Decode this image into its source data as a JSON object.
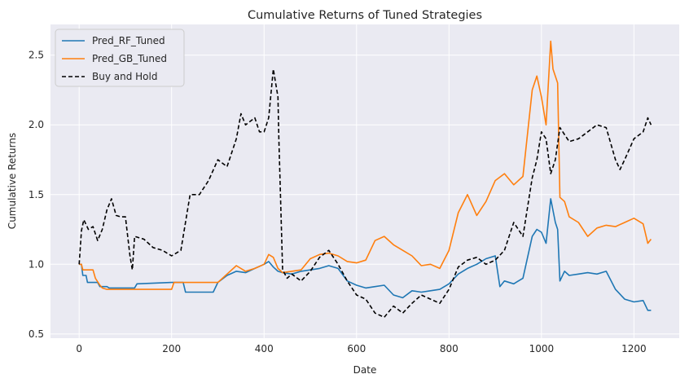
{
  "chart_data": {
    "type": "line",
    "title": "Cumulative Returns of Tuned Strategies",
    "xlabel": "Date",
    "ylabel": "Cumulative Returns",
    "xlim": [
      -62,
      1298
    ],
    "ylim": [
      0.47,
      2.72
    ],
    "xticks": [
      0,
      200,
      400,
      600,
      800,
      1000,
      1200
    ],
    "yticks": [
      0.5,
      1.0,
      1.5,
      2.0,
      2.5
    ],
    "grid": true,
    "legend_position": "upper-left",
    "series": [
      {
        "name": "Pred_RF_Tuned",
        "color": "#1f77b4",
        "dash": "solid",
        "points": [
          [
            0,
            1.0
          ],
          [
            5,
            1.0
          ],
          [
            8,
            0.92
          ],
          [
            15,
            0.92
          ],
          [
            18,
            0.87
          ],
          [
            40,
            0.87
          ],
          [
            45,
            0.84
          ],
          [
            60,
            0.84
          ],
          [
            65,
            0.83
          ],
          [
            120,
            0.83
          ],
          [
            125,
            0.86
          ],
          [
            200,
            0.87
          ],
          [
            225,
            0.87
          ],
          [
            230,
            0.8
          ],
          [
            290,
            0.8
          ],
          [
            300,
            0.87
          ],
          [
            320,
            0.92
          ],
          [
            340,
            0.95
          ],
          [
            360,
            0.94
          ],
          [
            380,
            0.97
          ],
          [
            400,
            1.0
          ],
          [
            410,
            1.02
          ],
          [
            420,
            0.98
          ],
          [
            430,
            0.95
          ],
          [
            440,
            0.94
          ],
          [
            460,
            0.93
          ],
          [
            480,
            0.95
          ],
          [
            500,
            0.96
          ],
          [
            520,
            0.97
          ],
          [
            540,
            0.99
          ],
          [
            560,
            0.97
          ],
          [
            580,
            0.88
          ],
          [
            600,
            0.85
          ],
          [
            620,
            0.83
          ],
          [
            640,
            0.84
          ],
          [
            660,
            0.85
          ],
          [
            680,
            0.78
          ],
          [
            700,
            0.76
          ],
          [
            720,
            0.81
          ],
          [
            740,
            0.8
          ],
          [
            760,
            0.81
          ],
          [
            780,
            0.82
          ],
          [
            800,
            0.86
          ],
          [
            820,
            0.93
          ],
          [
            840,
            0.97
          ],
          [
            860,
            1.0
          ],
          [
            880,
            1.04
          ],
          [
            900,
            1.06
          ],
          [
            910,
            0.84
          ],
          [
            920,
            0.88
          ],
          [
            940,
            0.86
          ],
          [
            960,
            0.9
          ],
          [
            980,
            1.2
          ],
          [
            990,
            1.25
          ],
          [
            1000,
            1.23
          ],
          [
            1010,
            1.15
          ],
          [
            1020,
            1.47
          ],
          [
            1030,
            1.3
          ],
          [
            1035,
            1.25
          ],
          [
            1040,
            0.88
          ],
          [
            1050,
            0.95
          ],
          [
            1060,
            0.92
          ],
          [
            1080,
            0.93
          ],
          [
            1100,
            0.94
          ],
          [
            1120,
            0.93
          ],
          [
            1140,
            0.95
          ],
          [
            1160,
            0.82
          ],
          [
            1180,
            0.75
          ],
          [
            1200,
            0.73
          ],
          [
            1220,
            0.74
          ],
          [
            1230,
            0.67
          ],
          [
            1237,
            0.67
          ]
        ]
      },
      {
        "name": "Pred_GB_Tuned",
        "color": "#ff7f0e",
        "dash": "solid",
        "points": [
          [
            0,
            1.0
          ],
          [
            5,
            1.0
          ],
          [
            8,
            0.96
          ],
          [
            30,
            0.96
          ],
          [
            35,
            0.9
          ],
          [
            45,
            0.85
          ],
          [
            50,
            0.83
          ],
          [
            60,
            0.82
          ],
          [
            200,
            0.82
          ],
          [
            205,
            0.87
          ],
          [
            290,
            0.87
          ],
          [
            300,
            0.87
          ],
          [
            320,
            0.93
          ],
          [
            340,
            0.99
          ],
          [
            360,
            0.95
          ],
          [
            380,
            0.97
          ],
          [
            400,
            1.0
          ],
          [
            410,
            1.07
          ],
          [
            420,
            1.05
          ],
          [
            430,
            0.97
          ],
          [
            440,
            0.94
          ],
          [
            460,
            0.95
          ],
          [
            480,
            0.96
          ],
          [
            500,
            1.04
          ],
          [
            520,
            1.07
          ],
          [
            540,
            1.08
          ],
          [
            560,
            1.06
          ],
          [
            580,
            1.02
          ],
          [
            600,
            1.01
          ],
          [
            620,
            1.03
          ],
          [
            640,
            1.17
          ],
          [
            660,
            1.2
          ],
          [
            680,
            1.14
          ],
          [
            700,
            1.1
          ],
          [
            720,
            1.06
          ],
          [
            740,
            0.99
          ],
          [
            760,
            1.0
          ],
          [
            780,
            0.97
          ],
          [
            800,
            1.1
          ],
          [
            820,
            1.37
          ],
          [
            840,
            1.5
          ],
          [
            860,
            1.35
          ],
          [
            880,
            1.45
          ],
          [
            900,
            1.6
          ],
          [
            920,
            1.65
          ],
          [
            940,
            1.57
          ],
          [
            960,
            1.63
          ],
          [
            980,
            2.25
          ],
          [
            990,
            2.35
          ],
          [
            1000,
            2.2
          ],
          [
            1010,
            2.0
          ],
          [
            1020,
            2.6
          ],
          [
            1025,
            2.4
          ],
          [
            1035,
            2.3
          ],
          [
            1040,
            1.48
          ],
          [
            1050,
            1.45
          ],
          [
            1060,
            1.34
          ],
          [
            1080,
            1.3
          ],
          [
            1100,
            1.2
          ],
          [
            1120,
            1.26
          ],
          [
            1140,
            1.28
          ],
          [
            1160,
            1.27
          ],
          [
            1180,
            1.3
          ],
          [
            1200,
            1.33
          ],
          [
            1220,
            1.29
          ],
          [
            1230,
            1.15
          ],
          [
            1237,
            1.18
          ]
        ]
      },
      {
        "name": "Buy and Hold",
        "color": "#000000",
        "dash": "dashed",
        "points": [
          [
            0,
            1.0
          ],
          [
            5,
            1.24
          ],
          [
            10,
            1.32
          ],
          [
            20,
            1.25
          ],
          [
            30,
            1.27
          ],
          [
            40,
            1.17
          ],
          [
            50,
            1.25
          ],
          [
            60,
            1.39
          ],
          [
            70,
            1.47
          ],
          [
            80,
            1.35
          ],
          [
            90,
            1.34
          ],
          [
            100,
            1.34
          ],
          [
            110,
            1.06
          ],
          [
            115,
            0.96
          ],
          [
            120,
            1.2
          ],
          [
            140,
            1.18
          ],
          [
            160,
            1.12
          ],
          [
            180,
            1.1
          ],
          [
            200,
            1.06
          ],
          [
            220,
            1.1
          ],
          [
            240,
            1.5
          ],
          [
            260,
            1.5
          ],
          [
            280,
            1.6
          ],
          [
            300,
            1.75
          ],
          [
            320,
            1.7
          ],
          [
            340,
            1.9
          ],
          [
            350,
            2.08
          ],
          [
            360,
            2.0
          ],
          [
            380,
            2.05
          ],
          [
            390,
            1.95
          ],
          [
            400,
            1.95
          ],
          [
            410,
            2.05
          ],
          [
            420,
            2.4
          ],
          [
            430,
            2.2
          ],
          [
            432,
            1.9
          ],
          [
            440,
            0.96
          ],
          [
            450,
            0.9
          ],
          [
            460,
            0.93
          ],
          [
            480,
            0.88
          ],
          [
            500,
            0.95
          ],
          [
            520,
            1.05
          ],
          [
            540,
            1.1
          ],
          [
            560,
            1.0
          ],
          [
            580,
            0.88
          ],
          [
            600,
            0.78
          ],
          [
            620,
            0.75
          ],
          [
            640,
            0.65
          ],
          [
            660,
            0.62
          ],
          [
            680,
            0.7
          ],
          [
            700,
            0.65
          ],
          [
            720,
            0.72
          ],
          [
            740,
            0.78
          ],
          [
            760,
            0.75
          ],
          [
            780,
            0.72
          ],
          [
            800,
            0.82
          ],
          [
            820,
            0.98
          ],
          [
            840,
            1.03
          ],
          [
            860,
            1.05
          ],
          [
            880,
            1.0
          ],
          [
            900,
            1.03
          ],
          [
            920,
            1.1
          ],
          [
            940,
            1.3
          ],
          [
            960,
            1.2
          ],
          [
            980,
            1.62
          ],
          [
            990,
            1.75
          ],
          [
            1000,
            1.95
          ],
          [
            1010,
            1.9
          ],
          [
            1020,
            1.65
          ],
          [
            1030,
            1.75
          ],
          [
            1040,
            1.98
          ],
          [
            1060,
            1.88
          ],
          [
            1080,
            1.9
          ],
          [
            1100,
            1.95
          ],
          [
            1120,
            2.0
          ],
          [
            1140,
            1.98
          ],
          [
            1160,
            1.75
          ],
          [
            1170,
            1.68
          ],
          [
            1180,
            1.75
          ],
          [
            1200,
            1.9
          ],
          [
            1220,
            1.95
          ],
          [
            1230,
            2.05
          ],
          [
            1237,
            2.0
          ]
        ]
      }
    ]
  }
}
